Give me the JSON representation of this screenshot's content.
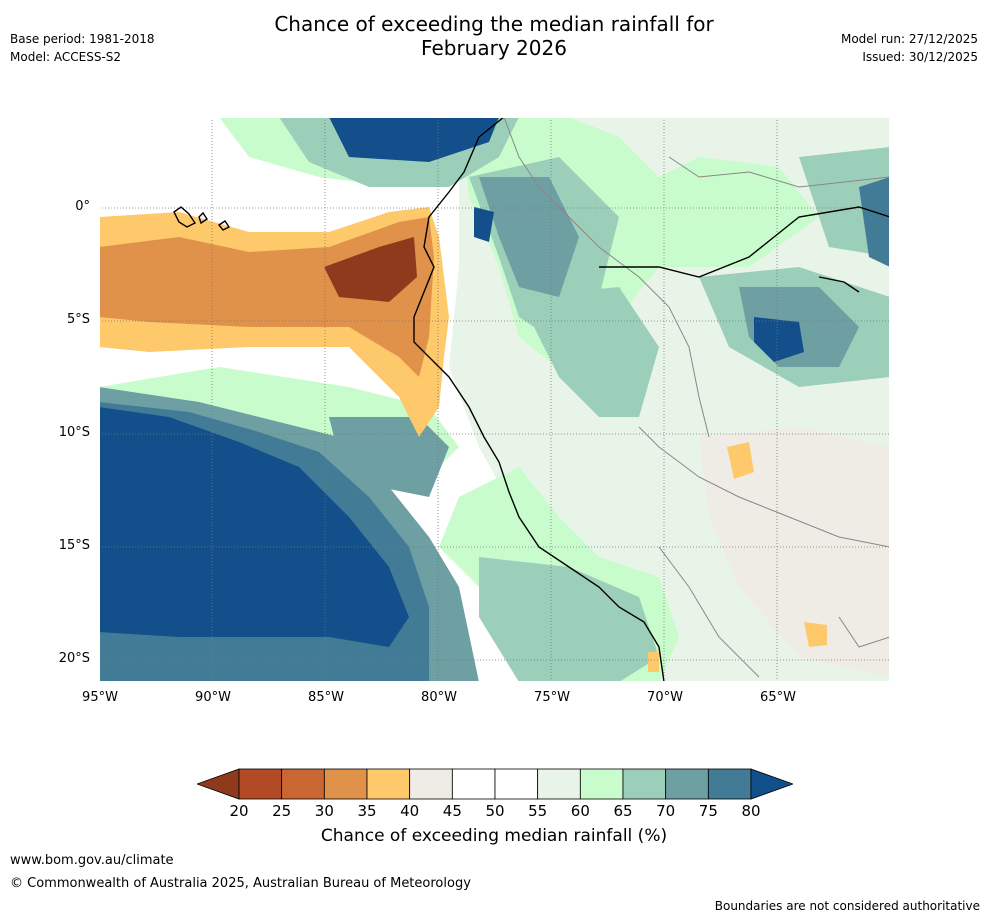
{
  "header": {
    "title_line1": "Chance of exceeding the median rainfall for",
    "title_line2": "February 2026",
    "base_period": "Base period: 1981-2018",
    "model": "Model: ACCESS-S2",
    "model_run": "Model run: 27/12/2025",
    "issued": "Issued: 30/12/2025"
  },
  "map": {
    "lat_labels": [
      "0°",
      "5°S",
      "10°S",
      "15°S",
      "20°S"
    ],
    "lon_labels": [
      "95°W",
      "90°W",
      "85°W",
      "80°W",
      "75°W",
      "70°W",
      "65°W"
    ]
  },
  "colorbar": {
    "ticks": [
      "20",
      "25",
      "30",
      "35",
      "40",
      "45",
      "50",
      "55",
      "60",
      "65",
      "70",
      "75",
      "80"
    ],
    "colors": [
      "#8f3a1c",
      "#b24a25",
      "#c96632",
      "#e0924a",
      "#fdc96a",
      "#efece6",
      "#ffffff",
      "#ffffff",
      "#e9f4e8",
      "#c8fccc",
      "#9ccfb9",
      "#6e9fa3",
      "#427b96",
      "#134f8a"
    ],
    "label": "Chance of exceeding median rainfall (%)"
  },
  "footer": {
    "website": "www.bom.gov.au/climate",
    "copyright": "© Commonwealth of Australia 2025, Australian Bureau of Meteorology",
    "disclaimer": "Boundaries are not considered authoritative"
  }
}
